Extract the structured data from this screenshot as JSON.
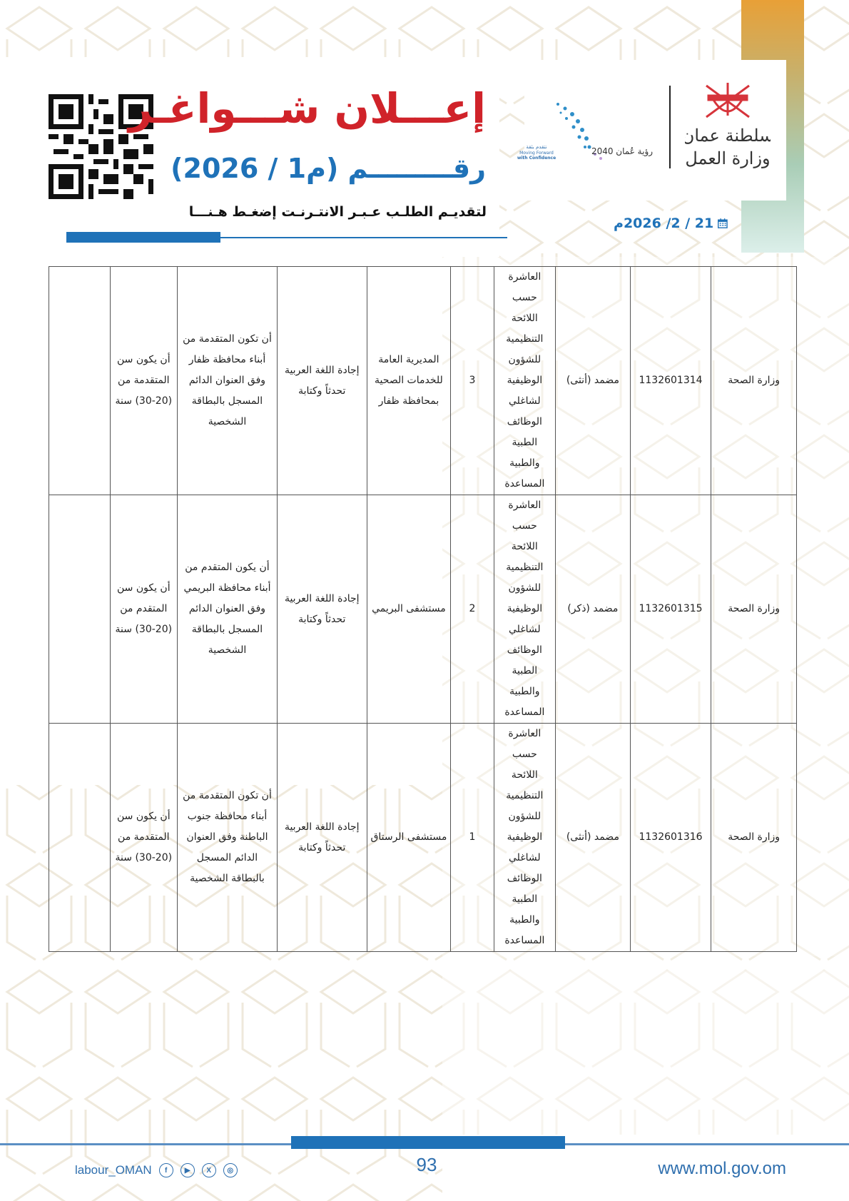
{
  "header": {
    "title": "إعـــلان شـــواغـر",
    "subtitle": "رقـــــــــم (م1 / 2026)",
    "apply_link": "لتقديـم الطلـب عـبـر الانتـرنـت إضغـط هـنـــا",
    "date": "21 / 2/ 2026م",
    "emblem_text_line1": "سلطنة عمان",
    "emblem_text_line2": "وزارة العمل",
    "vision_text": "رؤية عُمان 2040",
    "vision_slogan_ar": "نتقدم بثقة",
    "vision_slogan_en1": "Moving Forward",
    "vision_slogan_en2": "with Confidence",
    "icons": {
      "qr": "qr-code",
      "date": "calendar-icon"
    },
    "colors": {
      "title": "#d0232a",
      "accent": "#1f72b8"
    }
  },
  "table": {
    "rows": [
      {
        "ministry": "وزارة الصحة",
        "code": "1132601314",
        "job": "مضمد (أنثى)",
        "grade": "العاشرة حسب اللائحة التنظيمية للشؤون الوظيفية لشاغلي الوظائف الطبية والطبية المساعدة",
        "count": "3",
        "location": "المديرية العامة للخدمات الصحية بمحافظة ظفار",
        "language": "إجادة اللغة العربية تحدثاً وكتابة",
        "residence": "أن تكون المتقدمة من أبناء محافظة ظفار وفق العنوان الدائم المسجل بالبطاقة الشخصية",
        "age": "أن يكون سن المتقدمة من (20-30) سنة",
        "notes": ""
      },
      {
        "ministry": "وزارة الصحة",
        "code": "1132601315",
        "job": "مضمد (ذكر)",
        "grade": "العاشرة حسب اللائحة التنظيمية للشؤون الوظيفية لشاغلي الوظائف الطبية والطبية المساعدة",
        "count": "2",
        "location": "مستشفى البريمي",
        "language": "إجادة اللغة العربية تحدثاً وكتابة",
        "residence": "أن يكون المتقدم من أبناء محافظة البريمي وفق العنوان الدائم المسجل بالبطاقة الشخصية",
        "age": "أن يكون سن المتقدم من (20-30) سنة",
        "notes": ""
      },
      {
        "ministry": "وزارة الصحة",
        "code": "1132601316",
        "job": "مضمد (أنثى)",
        "grade": "العاشرة حسب اللائحة التنظيمية للشؤون الوظيفية لشاغلي الوظائف الطبية والطبية المساعدة",
        "count": "1",
        "location": "مستشفى الرستاق",
        "language": "إجادة اللغة العربية تحدثاً وكتابة",
        "residence": "أن تكون المتقدمة من أبناء محافظة جنوب الباطنة وفق العنوان الدائم المسجل بالبطاقة الشخصية",
        "age": "أن يكون سن المتقدمة من (20-30) سنة",
        "notes": ""
      }
    ]
  },
  "footer": {
    "page_number": "93",
    "social_handle": "labour_OMAN",
    "social_icons": [
      "facebook-icon",
      "youtube-icon",
      "x-icon",
      "instagram-icon"
    ],
    "website": "www.mol.gov.om"
  }
}
